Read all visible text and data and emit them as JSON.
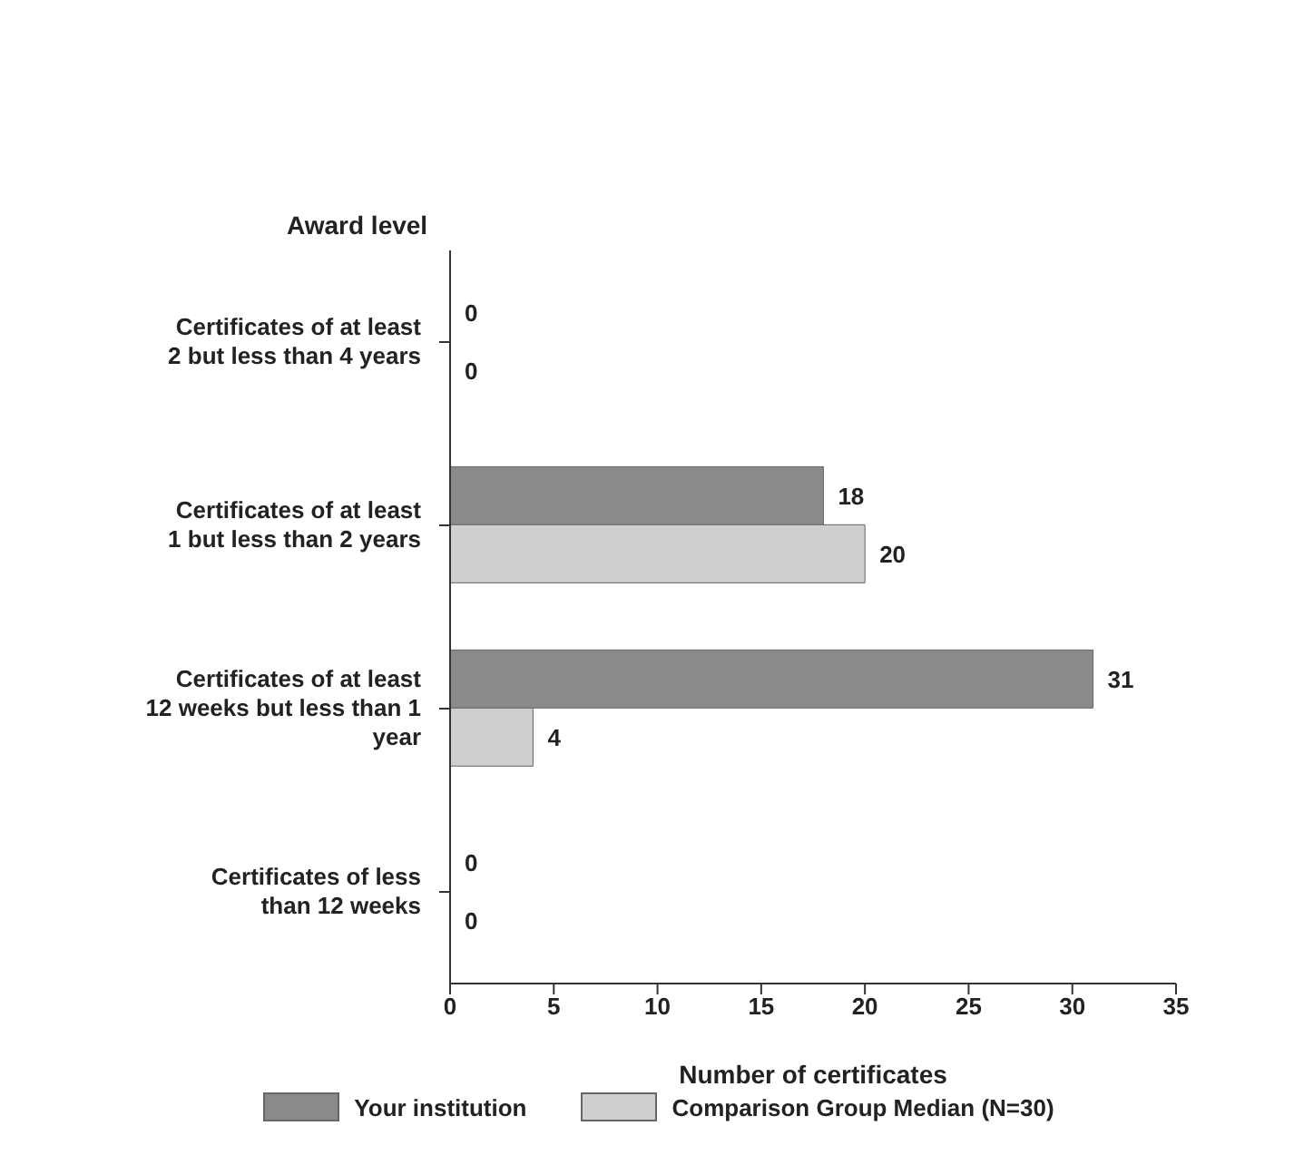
{
  "chart_data": {
    "type": "bar",
    "orientation": "horizontal",
    "ylabel": "Award level",
    "xlabel": "Number of certificates",
    "categories": [
      "Certificates of at least 2 but less than 4 years",
      "Certificates of at least 1 but  less than 2 years",
      "Certificates of at least 12 weeks but less than 1 year",
      "Certificates of less than 12 weeks"
    ],
    "series": [
      {
        "name": "Your institution",
        "color": "#8a8a8a",
        "values": [
          0,
          18,
          31,
          0
        ]
      },
      {
        "name": "Comparison Group Median (N=30)",
        "color": "#cfcfcf",
        "values": [
          0,
          20,
          4,
          0
        ]
      }
    ],
    "xlim": [
      0,
      35
    ],
    "xticks": [
      0,
      5,
      10,
      15,
      20,
      25,
      30,
      35
    ],
    "data_labels": true,
    "legend": "bottom",
    "grid": false
  }
}
